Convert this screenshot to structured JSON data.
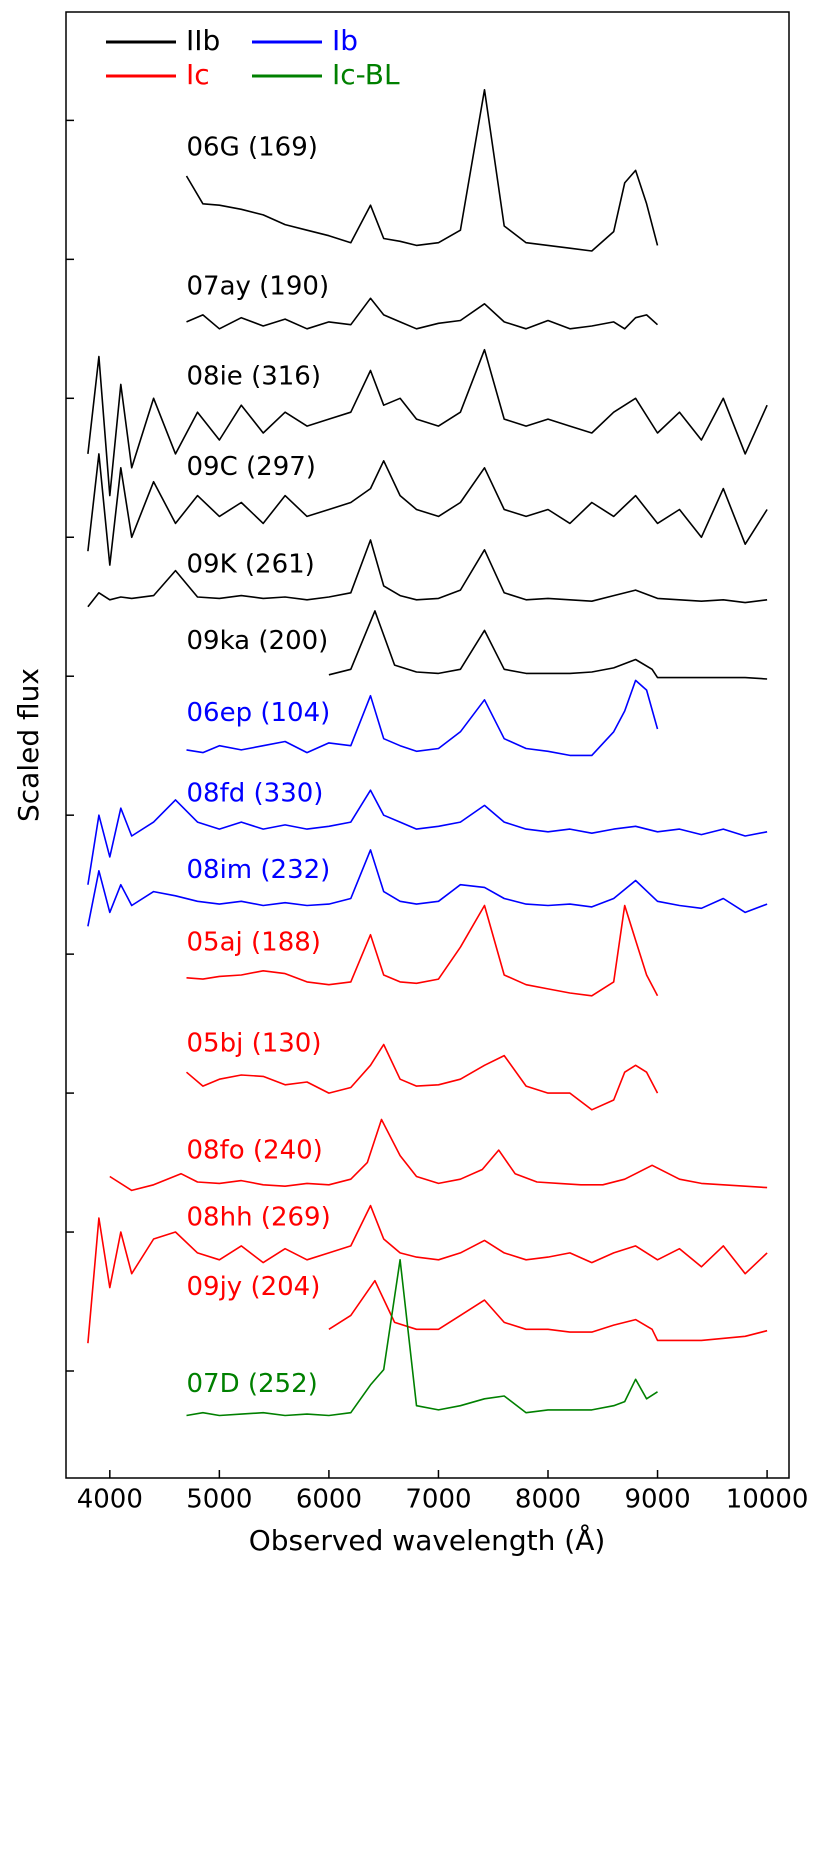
{
  "chart_data": {
    "type": "line",
    "xlabel": "Observed wavelength (Å)",
    "ylabel": "Scaled flux",
    "xlim": [
      3600,
      10200
    ],
    "xticks": [
      4000,
      5000,
      6000,
      7000,
      8000,
      9000,
      10000
    ],
    "ylim": [
      0.23,
      10.78
    ],
    "yticks": [
      1,
      2,
      3,
      4,
      5,
      6,
      7,
      8,
      9,
      10
    ],
    "legend_loc": "upper left",
    "legend": [
      {
        "name": "IIb",
        "color": "#000000"
      },
      {
        "name": "Ib",
        "color": "#0000ff"
      },
      {
        "name": "Ic",
        "color": "#ff0000"
      },
      {
        "name": "Ic-BL",
        "color": "#008000"
      }
    ],
    "spectra": [
      {
        "label": "06G (169)",
        "color": "#000000",
        "x": [
          4700,
          4850,
          5000,
          5200,
          5400,
          5600,
          5800,
          6000,
          6200,
          6380,
          6500,
          6650,
          6800,
          7000,
          7200,
          7420,
          7600,
          7800,
          8000,
          8200,
          8400,
          8600,
          8700,
          8800,
          8900,
          9000
        ],
        "y": [
          9.6,
          9.4,
          9.39,
          9.36,
          9.32,
          9.25,
          9.21,
          9.17,
          9.12,
          9.39,
          9.15,
          9.13,
          9.1,
          9.12,
          9.21,
          10.22,
          9.24,
          9.12,
          9.1,
          9.08,
          9.06,
          9.2,
          9.55,
          9.64,
          9.4,
          9.1
        ]
      },
      {
        "label": "07ay (190)",
        "color": "#000000",
        "x": [
          4700,
          4850,
          5000,
          5200,
          5400,
          5600,
          5800,
          6000,
          6200,
          6380,
          6500,
          6650,
          6800,
          7000,
          7200,
          7420,
          7600,
          7800,
          8000,
          8200,
          8400,
          8600,
          8700,
          8800,
          8900,
          9000
        ],
        "y": [
          8.55,
          8.6,
          8.5,
          8.58,
          8.52,
          8.57,
          8.5,
          8.55,
          8.53,
          8.72,
          8.6,
          8.55,
          8.5,
          8.54,
          8.56,
          8.68,
          8.55,
          8.5,
          8.56,
          8.5,
          8.52,
          8.55,
          8.5,
          8.58,
          8.6,
          8.53
        ]
      },
      {
        "label": "08ie (316)",
        "color": "#000000",
        "x": [
          3800,
          3900,
          4000,
          4100,
          4200,
          4400,
          4600,
          4800,
          5000,
          5200,
          5400,
          5600,
          5800,
          6000,
          6200,
          6380,
          6500,
          6650,
          6800,
          7000,
          7200,
          7420,
          7600,
          7800,
          8000,
          8200,
          8400,
          8600,
          8800,
          9000,
          9200,
          9400,
          9600,
          9800,
          10000
        ],
        "y": [
          7.6,
          8.3,
          7.3,
          8.1,
          7.5,
          8.0,
          7.6,
          7.9,
          7.7,
          7.95,
          7.75,
          7.9,
          7.8,
          7.85,
          7.9,
          8.2,
          7.95,
          8.0,
          7.85,
          7.8,
          7.9,
          8.35,
          7.85,
          7.8,
          7.85,
          7.8,
          7.75,
          7.9,
          8.0,
          7.75,
          7.9,
          7.7,
          8.0,
          7.6,
          7.95
        ]
      },
      {
        "label": "09C (297)",
        "color": "#000000",
        "x": [
          3800,
          3900,
          4000,
          4100,
          4200,
          4400,
          4600,
          4800,
          5000,
          5200,
          5400,
          5600,
          5800,
          6000,
          6200,
          6380,
          6500,
          6650,
          6800,
          7000,
          7200,
          7420,
          7600,
          7800,
          8000,
          8200,
          8400,
          8600,
          8800,
          9000,
          9200,
          9400,
          9600,
          9800,
          10000
        ],
        "y": [
          6.9,
          7.6,
          6.8,
          7.5,
          7.0,
          7.4,
          7.1,
          7.3,
          7.15,
          7.25,
          7.1,
          7.3,
          7.15,
          7.2,
          7.25,
          7.35,
          7.55,
          7.3,
          7.2,
          7.15,
          7.25,
          7.5,
          7.2,
          7.15,
          7.2,
          7.1,
          7.25,
          7.15,
          7.3,
          7.1,
          7.2,
          7.0,
          7.35,
          6.95,
          7.2
        ]
      },
      {
        "label": "09K (261)",
        "color": "#000000",
        "x": [
          3800,
          3900,
          4000,
          4100,
          4200,
          4400,
          4600,
          4800,
          5000,
          5200,
          5400,
          5600,
          5800,
          6000,
          6200,
          6380,
          6500,
          6650,
          6800,
          7000,
          7200,
          7420,
          7600,
          7800,
          8000,
          8200,
          8400,
          8600,
          8800,
          9000,
          9200,
          9400,
          9600,
          9800,
          10000
        ],
        "y": [
          6.5,
          6.6,
          6.55,
          6.57,
          6.56,
          6.58,
          6.76,
          6.57,
          6.56,
          6.58,
          6.56,
          6.57,
          6.55,
          6.57,
          6.6,
          6.98,
          6.65,
          6.58,
          6.55,
          6.56,
          6.62,
          6.91,
          6.6,
          6.55,
          6.56,
          6.55,
          6.54,
          6.58,
          6.62,
          6.56,
          6.55,
          6.54,
          6.55,
          6.53,
          6.55
        ]
      },
      {
        "label": "09ka (200)",
        "color": "#000000",
        "x": [
          6000,
          6200,
          6420,
          6600,
          6800,
          7000,
          7200,
          7420,
          7600,
          7800,
          8000,
          8200,
          8400,
          8600,
          8800,
          8950,
          9000,
          9400,
          9800,
          10000
        ],
        "y": [
          6.01,
          6.05,
          6.47,
          6.08,
          6.03,
          6.02,
          6.05,
          6.33,
          6.05,
          6.02,
          6.02,
          6.02,
          6.03,
          6.06,
          6.12,
          6.05,
          5.99,
          5.99,
          5.99,
          5.98
        ]
      },
      {
        "label": "06ep (104)",
        "color": "#0000ff",
        "x": [
          4700,
          4850,
          5000,
          5200,
          5400,
          5600,
          5800,
          6000,
          6200,
          6380,
          6500,
          6650,
          6800,
          7000,
          7200,
          7420,
          7600,
          7800,
          8000,
          8200,
          8400,
          8600,
          8700,
          8800,
          8900,
          9000
        ],
        "y": [
          5.47,
          5.45,
          5.5,
          5.47,
          5.5,
          5.53,
          5.45,
          5.52,
          5.5,
          5.86,
          5.55,
          5.5,
          5.46,
          5.48,
          5.6,
          5.83,
          5.55,
          5.48,
          5.46,
          5.43,
          5.43,
          5.6,
          5.75,
          5.97,
          5.9,
          5.62
        ]
      },
      {
        "label": "08fd (330)",
        "color": "#0000ff",
        "x": [
          3800,
          3900,
          4000,
          4100,
          4200,
          4400,
          4600,
          4800,
          5000,
          5200,
          5400,
          5600,
          5800,
          6000,
          6200,
          6380,
          6500,
          6650,
          6800,
          7000,
          7200,
          7420,
          7600,
          7800,
          8000,
          8200,
          8400,
          8600,
          8800,
          9000,
          9200,
          9400,
          9600,
          9800,
          10000
        ],
        "y": [
          4.5,
          5.0,
          4.7,
          5.05,
          4.85,
          4.95,
          5.11,
          4.95,
          4.9,
          4.95,
          4.9,
          4.93,
          4.9,
          4.92,
          4.95,
          5.18,
          5.0,
          4.95,
          4.9,
          4.92,
          4.95,
          5.07,
          4.95,
          4.9,
          4.88,
          4.9,
          4.87,
          4.9,
          4.92,
          4.88,
          4.9,
          4.86,
          4.9,
          4.85,
          4.88
        ]
      },
      {
        "label": "08im (232)",
        "color": "#0000ff",
        "x": [
          3800,
          3900,
          4000,
          4100,
          4200,
          4400,
          4600,
          4800,
          5000,
          5200,
          5400,
          5600,
          5800,
          6000,
          6200,
          6380,
          6500,
          6650,
          6800,
          7000,
          7200,
          7420,
          7600,
          7800,
          8000,
          8200,
          8400,
          8600,
          8800,
          9000,
          9200,
          9400,
          9600,
          9800,
          10000
        ],
        "y": [
          4.2,
          4.6,
          4.3,
          4.5,
          4.35,
          4.45,
          4.42,
          4.38,
          4.36,
          4.38,
          4.35,
          4.37,
          4.35,
          4.36,
          4.4,
          4.75,
          4.45,
          4.38,
          4.36,
          4.38,
          4.5,
          4.48,
          4.4,
          4.36,
          4.35,
          4.36,
          4.34,
          4.4,
          4.53,
          4.38,
          4.35,
          4.33,
          4.4,
          4.3,
          4.36
        ]
      },
      {
        "label": "05aj (188)",
        "color": "#ff0000",
        "x": [
          4700,
          4850,
          5000,
          5200,
          5400,
          5600,
          5800,
          6000,
          6200,
          6380,
          6500,
          6650,
          6800,
          7000,
          7200,
          7420,
          7600,
          7800,
          8000,
          8200,
          8400,
          8600,
          8700,
          8800,
          8900,
          9000
        ],
        "y": [
          3.83,
          3.82,
          3.84,
          3.85,
          3.88,
          3.86,
          3.8,
          3.78,
          3.8,
          4.14,
          3.85,
          3.8,
          3.79,
          3.82,
          4.05,
          4.35,
          3.85,
          3.78,
          3.75,
          3.72,
          3.7,
          3.8,
          4.35,
          4.1,
          3.85,
          3.7
        ]
      },
      {
        "label": "05bj (130)",
        "color": "#ff0000",
        "x": [
          4700,
          4850,
          5000,
          5200,
          5400,
          5600,
          5800,
          6000,
          6200,
          6380,
          6500,
          6650,
          6800,
          7000,
          7200,
          7420,
          7600,
          7800,
          8000,
          8200,
          8400,
          8600,
          8700,
          8800,
          8900,
          9000
        ],
        "y": [
          3.15,
          3.05,
          3.1,
          3.13,
          3.12,
          3.06,
          3.08,
          3.0,
          3.04,
          3.2,
          3.35,
          3.1,
          3.05,
          3.06,
          3.1,
          3.2,
          3.27,
          3.05,
          3.0,
          3.0,
          2.88,
          2.95,
          3.15,
          3.2,
          3.15,
          3.0
        ]
      },
      {
        "label": "08fo (240)",
        "color": "#ff0000",
        "x": [
          4000,
          4200,
          4400,
          4650,
          4800,
          5000,
          5200,
          5400,
          5600,
          5800,
          6000,
          6200,
          6350,
          6480,
          6650,
          6800,
          7000,
          7200,
          7400,
          7550,
          7700,
          7900,
          8100,
          8300,
          8500,
          8700,
          8950,
          9200,
          9400,
          9600,
          9800,
          10000
        ],
        "y": [
          2.4,
          2.3,
          2.34,
          2.42,
          2.36,
          2.35,
          2.37,
          2.34,
          2.33,
          2.35,
          2.34,
          2.38,
          2.5,
          2.81,
          2.55,
          2.4,
          2.35,
          2.38,
          2.45,
          2.59,
          2.42,
          2.36,
          2.35,
          2.34,
          2.34,
          2.38,
          2.48,
          2.38,
          2.35,
          2.34,
          2.33,
          2.32
        ]
      },
      {
        "label": "08hh (269)",
        "color": "#ff0000",
        "x": [
          3800,
          3900,
          4000,
          4100,
          4200,
          4400,
          4600,
          4800,
          5000,
          5200,
          5400,
          5600,
          5800,
          6000,
          6200,
          6380,
          6500,
          6650,
          6800,
          7000,
          7200,
          7420,
          7600,
          7800,
          8000,
          8200,
          8400,
          8600,
          8800,
          9000,
          9200,
          9400,
          9600,
          9800,
          10000
        ],
        "y": [
          1.2,
          2.1,
          1.6,
          2.0,
          1.7,
          1.95,
          2.0,
          1.85,
          1.8,
          1.9,
          1.78,
          1.88,
          1.8,
          1.85,
          1.9,
          2.19,
          1.95,
          1.85,
          1.82,
          1.8,
          1.85,
          1.94,
          1.85,
          1.8,
          1.82,
          1.85,
          1.78,
          1.85,
          1.9,
          1.8,
          1.88,
          1.75,
          1.9,
          1.7,
          1.85
        ]
      },
      {
        "label": "09jy (204)",
        "color": "#ff0000",
        "x": [
          6000,
          6200,
          6420,
          6600,
          6800,
          7000,
          7200,
          7420,
          7600,
          7800,
          8000,
          8200,
          8400,
          8600,
          8800,
          8950,
          9000,
          9400,
          9800,
          10000
        ],
        "y": [
          1.3,
          1.4,
          1.65,
          1.35,
          1.3,
          1.3,
          1.4,
          1.51,
          1.35,
          1.3,
          1.3,
          1.28,
          1.28,
          1.33,
          1.37,
          1.3,
          1.22,
          1.22,
          1.25,
          1.29
        ]
      },
      {
        "label": "07D (252)",
        "color": "#008000",
        "x": [
          4700,
          4850,
          5000,
          5200,
          5400,
          5600,
          5800,
          6000,
          6200,
          6380,
          6500,
          6650,
          6800,
          7000,
          7200,
          7420,
          7600,
          7800,
          8000,
          8200,
          8400,
          8600,
          8700,
          8800,
          8900,
          9000
        ],
        "y": [
          0.68,
          0.7,
          0.68,
          0.69,
          0.7,
          0.68,
          0.69,
          0.68,
          0.7,
          0.9,
          1.01,
          1.8,
          0.75,
          0.72,
          0.75,
          0.8,
          0.82,
          0.7,
          0.72,
          0.72,
          0.72,
          0.75,
          0.78,
          0.94,
          0.8,
          0.85
        ]
      }
    ]
  }
}
